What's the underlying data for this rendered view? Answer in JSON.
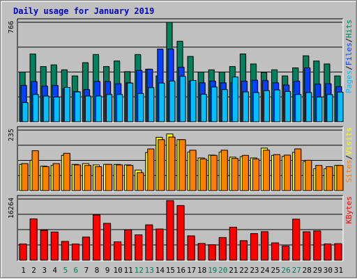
{
  "chart_data": {
    "type": "bar",
    "title": "Daily usage for January 2019",
    "categories": [
      "1",
      "2",
      "3",
      "4",
      "5",
      "6",
      "7",
      "8",
      "9",
      "10",
      "11",
      "12",
      "13",
      "14",
      "15",
      "16",
      "17",
      "18",
      "19",
      "20",
      "21",
      "22",
      "23",
      "24",
      "25",
      "26",
      "27",
      "28",
      "29",
      "30",
      "31"
    ],
    "weekend_days": [
      "5",
      "6",
      "12",
      "13",
      "19",
      "20",
      "26",
      "27"
    ],
    "colors": {
      "title": "#0000c0",
      "hits": "#00805c",
      "files": "#0040ff",
      "pages": "#00c0ff",
      "visits": "#ffff00",
      "sites": "#ff8000",
      "kbytes": "#ff0000",
      "weekday_label": "#000000",
      "weekend_label": "#00805c"
    },
    "panels": [
      {
        "id": "hits-files-pages",
        "ymax_label": "766",
        "ylim": [
          0,
          766
        ],
        "legend": [
          {
            "text": "Pages",
            "color": "#00c0ff"
          },
          {
            "text": "Files",
            "color": "#0040ff"
          },
          {
            "text": "Hits",
            "color": "#00805c"
          }
        ],
        "series": [
          {
            "name": "Hits",
            "values": [
              383,
              522,
              425,
              438,
              400,
              353,
              455,
              518,
              425,
              468,
              386,
              518,
              405,
              353,
              766,
              620,
              503,
              383,
              400,
              383,
              425,
              522,
              445,
              380,
              400,
              353,
              415,
              508,
              468,
              445,
              353
            ]
          },
          {
            "name": "Files",
            "values": [
              280,
              310,
              275,
              280,
              255,
              233,
              248,
              310,
              310,
              293,
              300,
              395,
              405,
              560,
              560,
              420,
              313,
              300,
              313,
              300,
              300,
              313,
              320,
              317,
              300,
              283,
              313,
              415,
              290,
              293,
              270
            ]
          },
          {
            "name": "Pages",
            "values": [
              148,
              210,
              198,
              190,
              265,
              230,
              198,
              198,
              210,
              210,
              298,
              218,
              263,
              298,
              313,
              350,
              318,
              212,
              268,
              248,
              345,
              230,
              225,
              240,
              245,
              233,
              210,
              225,
              190,
              210,
              228
            ]
          }
        ]
      },
      {
        "id": "visits-sites",
        "ymax_label": "235",
        "ylim": [
          0,
          235
        ],
        "legend": [
          {
            "text": "Sites",
            "color": "#ff8000"
          },
          {
            "text": "Visits",
            "color": "#ffff00"
          }
        ],
        "series": [
          {
            "name": "Visits",
            "values": [
              102,
              118,
              95,
              98,
              137,
              102,
              105,
              100,
              102,
              102,
              100,
              80,
              148,
              207,
              220,
              198,
              150,
              127,
              138,
              150,
              130,
              132,
              127,
              165,
              137,
              133,
              149,
              113,
              85,
              85,
              98
            ]
          },
          {
            "name": "Sites",
            "values": [
              105,
              155,
              93,
              105,
              145,
              100,
              98,
              93,
              102,
              100,
              98,
              70,
              162,
              198,
              208,
              198,
              157,
              123,
              137,
              157,
              125,
              137,
              123,
              157,
              140,
              138,
              162,
              118,
              98,
              93,
              98
            ]
          }
        ]
      },
      {
        "id": "kbytes",
        "ymax_label": "16264",
        "ylim": [
          0,
          16264
        ],
        "legend": [
          {
            "text": "KBytes",
            "color": "#ff0000"
          }
        ],
        "series": [
          {
            "name": "KBytes",
            "values": [
              4300,
              11000,
              7950,
              7500,
              5000,
              4300,
              6150,
              12000,
              9800,
              4900,
              8050,
              6750,
              9400,
              8300,
              15840,
              14530,
              6470,
              4450,
              4120,
              6030,
              8780,
              5200,
              7080,
              7590,
              4610,
              3770,
              10910,
              7560,
              7780,
              4340,
              4400
            ]
          }
        ]
      }
    ]
  }
}
